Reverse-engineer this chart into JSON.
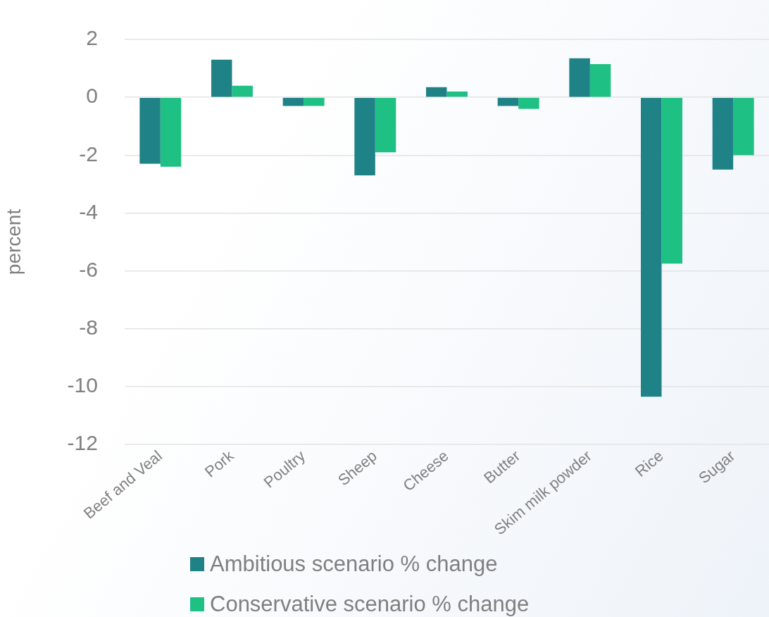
{
  "chart_data": {
    "type": "bar",
    "ylabel": "percent",
    "categories": [
      "Beef and Veal",
      "Pork",
      "Poultry",
      "Sheep",
      "Cheese",
      "Butter",
      "Skim milk powder",
      "Rice",
      "Sugar"
    ],
    "series": [
      {
        "name": "Ambitious scenario % change",
        "color": "#1f8287",
        "values": [
          -2.3,
          1.3,
          -0.3,
          -2.7,
          0.35,
          -0.3,
          1.35,
          -10.35,
          -2.5
        ]
      },
      {
        "name": "Conservative scenario % change",
        "color": "#1fc084",
        "values": [
          -2.4,
          0.4,
          -0.3,
          -1.9,
          0.2,
          -0.4,
          1.15,
          -5.75,
          -2.0
        ]
      }
    ],
    "ylim": [
      -12,
      2
    ],
    "yticks": [
      -12,
      -10,
      -8,
      -6,
      -4,
      -2,
      0,
      2
    ],
    "grid": "y",
    "legend": "bottom"
  }
}
